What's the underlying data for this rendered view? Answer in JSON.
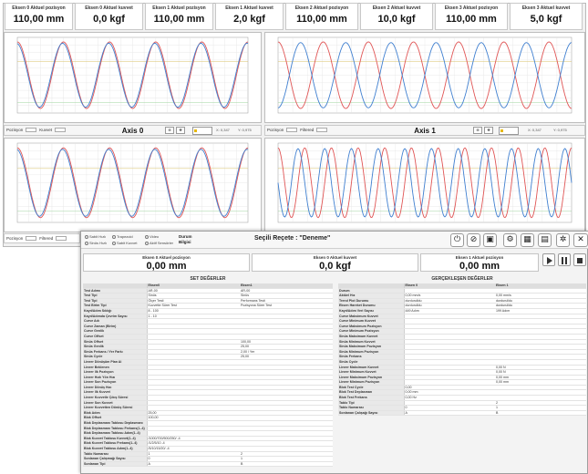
{
  "back_window": {
    "headers": [
      {
        "label": "Eksen 0 Aktuel pozisyon",
        "value": "110,00 mm"
      },
      {
        "label": "Eksen 0 Aktuel kuvvet",
        "value": "0,0 kgf"
      },
      {
        "label": "Eksen 1 Aktuel pozisyon",
        "value": "110,00 mm"
      },
      {
        "label": "Eksen 1 Aktuel kuvvet",
        "value": "2,0 kgf"
      },
      {
        "label": "Eksen 2 Aktuel pozisyon",
        "value": "110,00 mm"
      },
      {
        "label": "Eksen 2 Aktuel kuvvet",
        "value": "10,0 kgf"
      },
      {
        "label": "Eksen 3 Aktuel pozisyon",
        "value": "110,00 mm"
      },
      {
        "label": "Eksen 3 Aktuel kuvvet",
        "value": "5,0 kgf"
      }
    ],
    "axis_titles": [
      "Axis 0",
      "Axis 1"
    ],
    "legend": {
      "position": "Pozisyon",
      "force": "Kuvvet",
      "filtered": "Filtered"
    },
    "scale_labels": {
      "left": "X: 0,347",
      "right": "Y: 0,975"
    }
  },
  "front_window": {
    "toolbar": {
      "radio_1": "Sabit Hızlı",
      "radio_2": "Sinüs Hızlı",
      "radio_3": "Trapezoid",
      "radio_4": "Sabit Kuvvet",
      "radio_5": "Video",
      "radio_6": "Aktif Sensörler",
      "status_line1": "Durum",
      "status_line2": "Bilgisi",
      "recipe_title": "Seçili Reçete : \"Deneme\""
    },
    "headers": [
      {
        "label": "Eksen 0 Aktuel pozisyon",
        "value": "0,00 mm"
      },
      {
        "label": "Eksen 0 Aktuel kuvvet",
        "value": "0,0 kgf"
      },
      {
        "label": "Eksen 1 Aktuel pozisyon",
        "value": "0,00 mm"
      }
    ],
    "set_title": "SET DEĞERLER",
    "actual_title": "GERÇEKLEŞEN DEĞERLER",
    "set_table": {
      "columns": [
        "",
        "Eksen0",
        "Eksen1"
      ],
      "rows": [
        [
          "Test Adımı",
          "AR-00",
          "AR-00"
        ],
        [
          "Test Tipi",
          "Sinüs",
          "Sinüs"
        ],
        [
          "Test Tipi",
          "Ölçer Testi",
          "Performans Testi"
        ],
        [
          "Test Birim Tipi",
          "Kuvvette Sürer Test",
          "Pozisyona Sürer Test"
        ],
        [
          "Kayıt/Adım Sıklığı",
          "8 - 100",
          ""
        ],
        [
          "Kayıt/Adımda Çevrim Sayısı",
          "1 - 10",
          ""
        ],
        [
          "Curve Adı",
          "",
          ""
        ],
        [
          "Curve Zaman (Birim)",
          "",
          ""
        ],
        [
          "Curve Genlik",
          "",
          ""
        ],
        [
          "Curve Offset",
          "",
          ""
        ],
        [
          "Sinüs Offset",
          "",
          "100,00"
        ],
        [
          "Sinüs Genlik",
          "",
          "25,00"
        ],
        [
          "Sinüs Frekans / Yer Farkı",
          "",
          "2,00 / Yer"
        ],
        [
          "Sinüs Cycle",
          "",
          "25,00"
        ],
        [
          "Lineer Dönüşüm Plan Ai",
          "",
          ""
        ],
        [
          "Lineer Beklenen",
          "",
          ""
        ],
        [
          "Lineer Ilk Pozisyon",
          "",
          ""
        ],
        [
          "Lineer Hızlı Yön Hızı",
          "",
          ""
        ],
        [
          "Lineer Son Pozisyon",
          "",
          ""
        ],
        [
          "Lineer Dönüş Hızı",
          "",
          ""
        ],
        [
          "Lineer Ilk Kuvvet",
          "",
          ""
        ],
        [
          "Lineer Kuvvetle Çıkış Süresi",
          "",
          ""
        ],
        [
          "Lineer Son Kuvvet",
          "",
          ""
        ],
        [
          "Lineer Kuvvetten Dönüş Süresi",
          "",
          ""
        ],
        [
          "Blok Adım",
          "25,00",
          ""
        ],
        [
          "Blok Offset",
          "100,00",
          ""
        ],
        [
          "Blok Deplasmanı Tablosu Deplasmanı",
          "",
          ""
        ],
        [
          "Blok Deplasmanı Tablosu Frekans(1..4)",
          "",
          ""
        ],
        [
          "Blok Deplasmanı Tablosu Adım(1..4)",
          "",
          ""
        ],
        [
          "Blok Kuvvet Tablosu Kuvvet(1..4)",
          "/1000/700/500/250/ -4",
          ""
        ],
        [
          "Blok Kuvvet Tablosu Frekans(1..4)",
          "/1/2/5/10 -4",
          ""
        ],
        [
          "Blok Kuvvet Tablosu Adım(1..4)",
          "/5/10/15/20/ -4",
          ""
        ],
        [
          "Tablo Numarası",
          "1",
          "2"
        ],
        [
          "Sonlanan Çalışmağı Sayısı",
          "0",
          "1"
        ],
        [
          "Sonlanan Tipi",
          "A",
          "B"
        ]
      ]
    },
    "actual_table": {
      "columns": [
        "",
        "Eksen 0",
        "Eksen 1"
      ],
      "rows": [
        [
          "Durum",
          "",
          ""
        ],
        [
          "Aktüel Hız",
          "0,00 mm/s",
          "0,00 mm/s"
        ],
        [
          "Trend Plot Durumu",
          "durdurulldu",
          "durdurulldu"
        ],
        [
          "Eksen Hareket Durumu",
          "durdurulldu",
          "durdurulldu"
        ],
        [
          "Kayıt/Adım Veri Sayısı",
          "449 Adım",
          "199 Adım"
        ],
        [
          "Curve Maksimum Kuvvet",
          "",
          ""
        ],
        [
          "Curve Minimum Kuvvet",
          "",
          ""
        ],
        [
          "Curve Maksimum Pozisyon",
          "",
          ""
        ],
        [
          "Curve Minimum Pozisyon",
          "",
          ""
        ],
        [
          "Sinüs Maksimum Kuvvet",
          "",
          ""
        ],
        [
          "Sinüs Minimum Kuvvet",
          "",
          ""
        ],
        [
          "Sinüs Maksimum Pozisyon",
          "",
          ""
        ],
        [
          "Sinüs Minimum Pozisyon",
          "",
          ""
        ],
        [
          "Sinüs Frekans",
          "",
          ""
        ],
        [
          "Sinüs Cycle",
          "",
          ""
        ],
        [
          "Lineer Maksimum Kuvvet",
          "",
          "0,00 N"
        ],
        [
          "Lineer Minimum Kuvvet",
          "",
          "0,00 N"
        ],
        [
          "Lineer Maksimum Pozisyon",
          "",
          "0,00 mm"
        ],
        [
          "Lineer Minimum Pozisyon",
          "",
          "0,00 mm"
        ],
        [
          "Blok Test Cycle",
          "0,00",
          ""
        ],
        [
          "Blok Test Deplasman",
          "0,00 mm",
          ""
        ],
        [
          "Blok Test Frekans",
          "0,00 Hz",
          ""
        ],
        [
          "Tablo Tipi",
          "",
          "2"
        ],
        [
          "Tablo Numarası",
          "0",
          "1"
        ],
        [
          "Sonlanan Çalışağı Sayısı",
          "A",
          "B"
        ]
      ]
    }
  }
}
